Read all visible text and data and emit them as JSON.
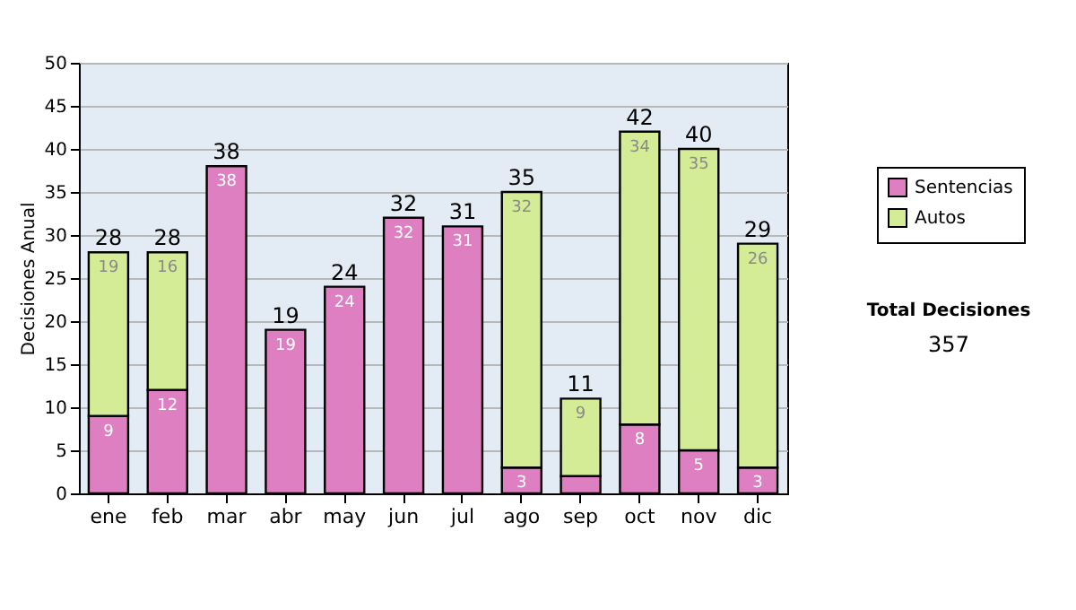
{
  "chart_data": {
    "type": "bar",
    "stacked": true,
    "ylabel": "Decisiones Anual",
    "categories": [
      "ene",
      "feb",
      "mar",
      "abr",
      "may",
      "jun",
      "jul",
      "ago",
      "sep",
      "oct",
      "nov",
      "dic"
    ],
    "series": [
      {
        "name": "Sentencias",
        "color": "#dd7fc0",
        "values": [
          9,
          12,
          38,
          19,
          24,
          32,
          31,
          3,
          2,
          8,
          5,
          3
        ],
        "value_labels": [
          "9",
          "12",
          "38",
          "19",
          "24",
          "32",
          "31",
          "3",
          null,
          "8",
          "5",
          "3"
        ]
      },
      {
        "name": "Autos",
        "color": "#d5ec97",
        "values": [
          19,
          16,
          null,
          null,
          null,
          null,
          null,
          32,
          9,
          34,
          35,
          26
        ],
        "value_labels": [
          "19",
          "16",
          null,
          null,
          null,
          null,
          null,
          "32",
          "9",
          "34",
          "35",
          "26"
        ]
      }
    ],
    "totals": [
      "28",
      "28",
      "38",
      "19",
      "24",
      "32",
      "31",
      "35",
      "11",
      "42",
      "40",
      "29"
    ],
    "ylim": [
      0,
      50
    ],
    "yticks": [
      0,
      5,
      10,
      15,
      20,
      25,
      30,
      35,
      40,
      45,
      50
    ],
    "grid": "y",
    "legend": "right",
    "annotations": [
      "Total Decisiones",
      "357"
    ]
  }
}
